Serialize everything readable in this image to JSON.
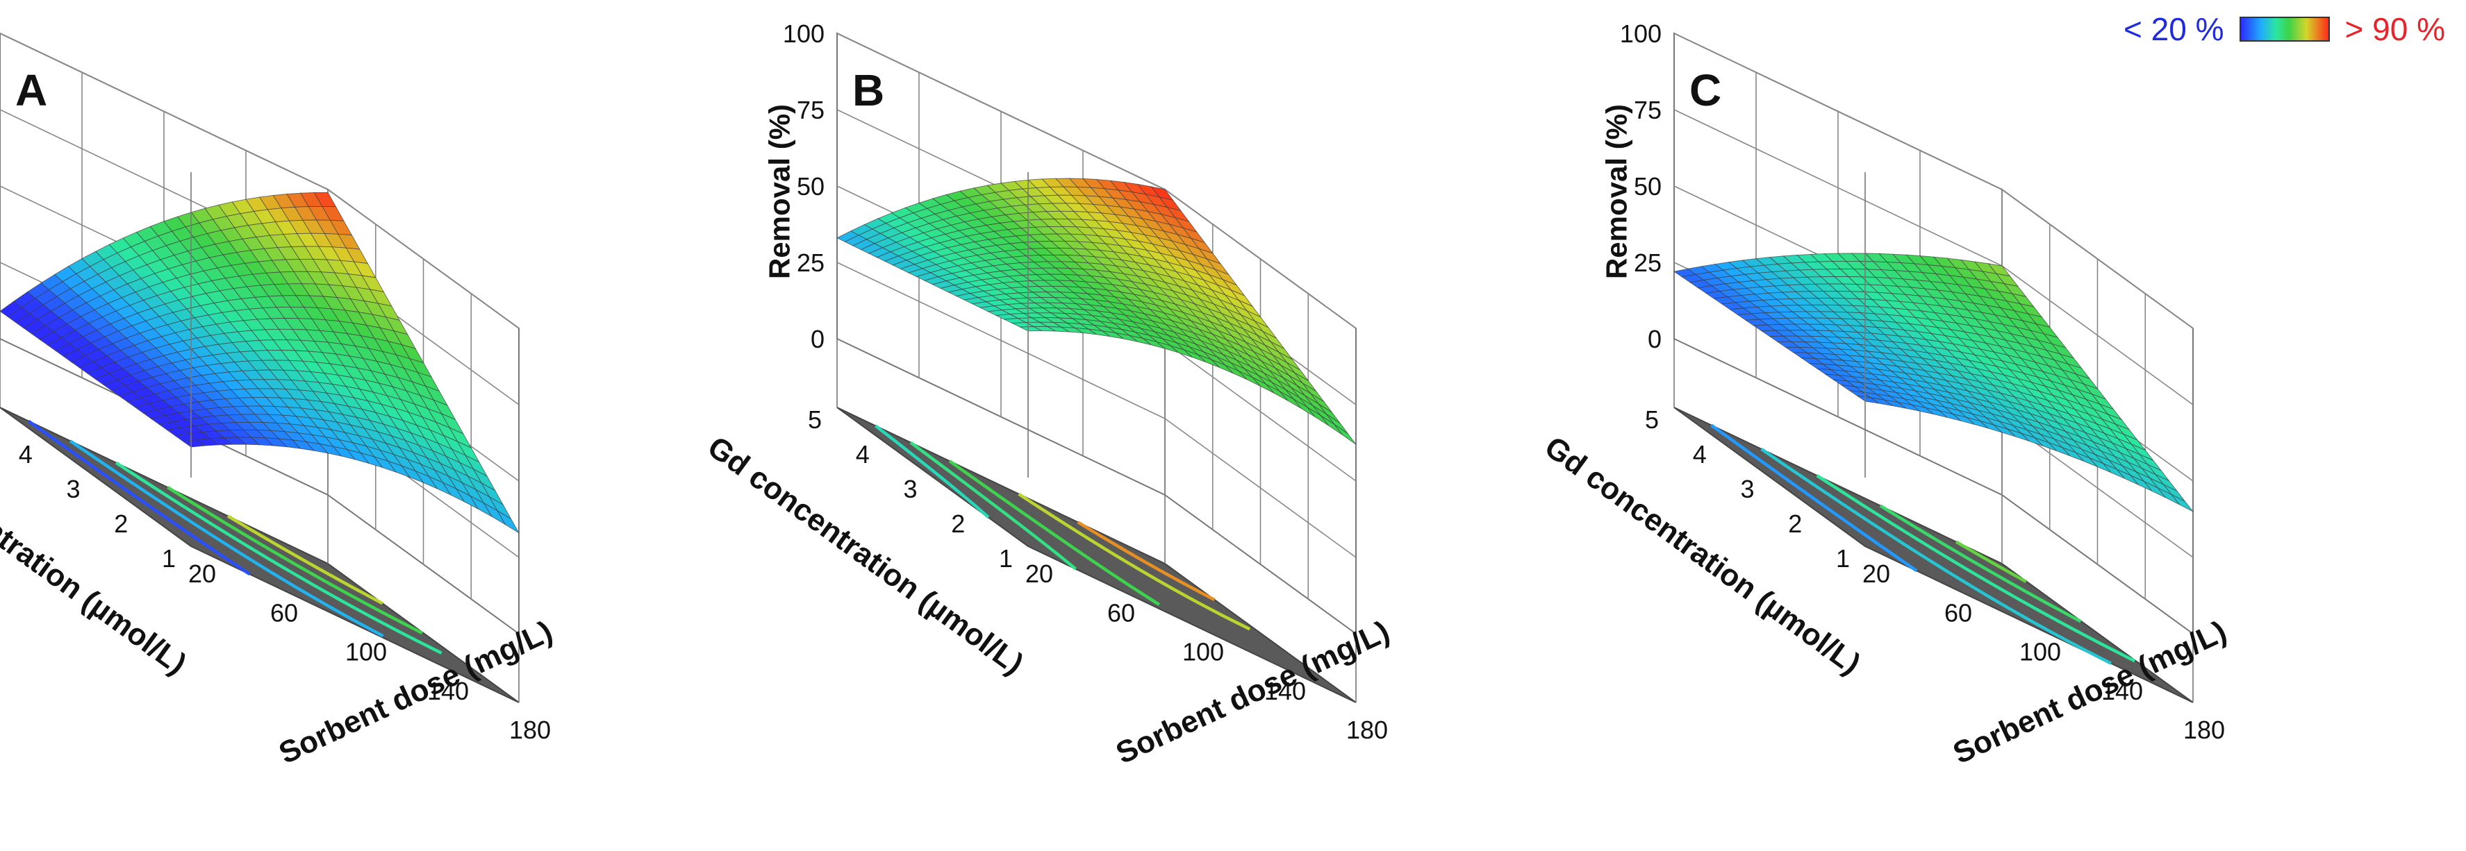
{
  "legend": {
    "low": "< 20 %",
    "high": "> 90 %",
    "gradient": [
      "#2c2cff",
      "#1fa8ff",
      "#2be6a0",
      "#3fd24a",
      "#d6d52a",
      "#ff2a1a"
    ]
  },
  "axes": {
    "zlabel": "Removal (%)",
    "xlabel": "Sorbent dose (mg/L)",
    "ylabel": "Gd concentration (µmol/L)",
    "xticks": [
      "20",
      "60",
      "100",
      "140",
      "180"
    ],
    "yticks": [
      "1",
      "2",
      "3",
      "4",
      "5"
    ],
    "zticks": [
      "0",
      "25",
      "50",
      "75",
      "100"
    ],
    "xrange": [
      20,
      180
    ],
    "yrange": [
      1,
      5
    ],
    "zrange": [
      0,
      100
    ]
  },
  "chart_data": [
    {
      "type": "surface",
      "panel": "A",
      "corners": {
        "dose_min_conc_min": 10,
        "dose_max_conc_min": 33,
        "dose_min_conc_max": 9,
        "dose_max_conc_max": 99
      },
      "curvature": 10,
      "contour_levels": [
        20,
        35,
        50,
        65,
        80
      ]
    },
    {
      "type": "surface",
      "panel": "B",
      "corners": {
        "dose_min_conc_min": 48,
        "dose_max_conc_min": 62,
        "dose_min_conc_max": 33,
        "dose_max_conc_max": 100
      },
      "curvature": 10,
      "contour_levels": [
        45,
        55,
        65,
        80,
        90
      ]
    },
    {
      "type": "surface",
      "panel": "C",
      "corners": {
        "dose_min_conc_min": 25,
        "dose_max_conc_min": 40,
        "dose_min_conc_max": 22,
        "dose_max_conc_max": 75
      },
      "curvature": 5,
      "contour_levels": [
        30,
        40,
        50,
        60,
        70
      ]
    }
  ]
}
